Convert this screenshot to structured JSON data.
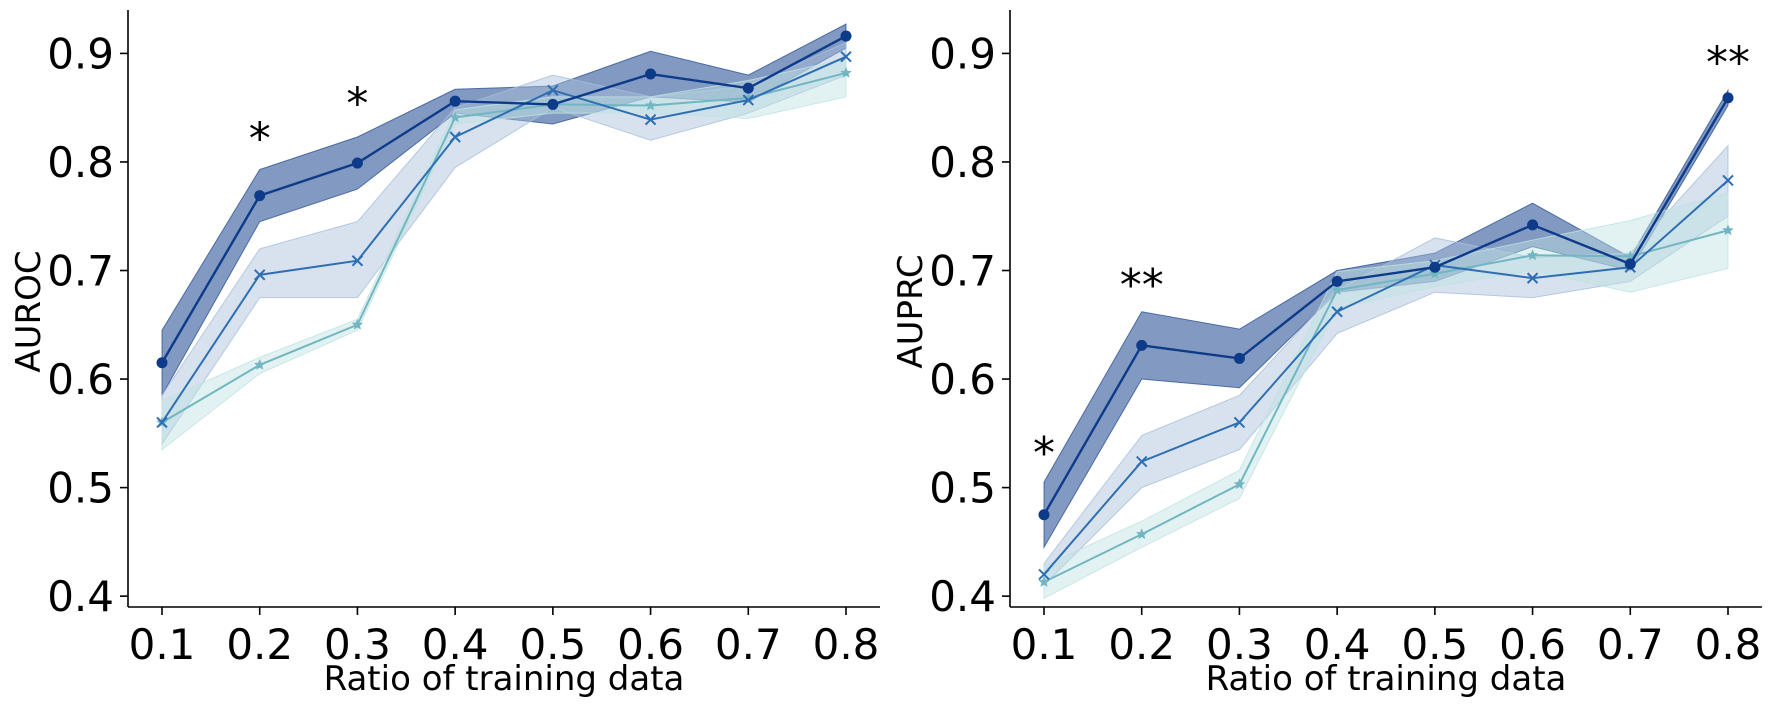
{
  "colors": {
    "series_1": "#0d3b8a",
    "series_2": "#2e6fb3",
    "series_3": "#72b6c2",
    "band_1": "#2f5597",
    "band_2": "#a8bfdc",
    "band_3": "#bfe2e3"
  },
  "chart_data": [
    {
      "type": "line",
      "title": "",
      "xlabel": "Ratio of training data",
      "ylabel": "AUROC",
      "x": [
        0.1,
        0.2,
        0.3,
        0.4,
        0.5,
        0.6,
        0.7,
        0.8
      ],
      "x_tick_labels": [
        "0.1",
        "0.2",
        "0.3",
        "0.4",
        "0.5",
        "0.6",
        "0.7",
        "0.8"
      ],
      "ylim": [
        0.39,
        0.94
      ],
      "y_ticks": [
        0.4,
        0.5,
        0.6,
        0.7,
        0.8,
        0.9
      ],
      "y_tick_labels": [
        "0.4",
        "0.5",
        "0.6",
        "0.7",
        "0.8",
        "0.9"
      ],
      "grid": false,
      "series": [
        {
          "marker": "circle",
          "values": [
            0.615,
            0.769,
            0.799,
            0.856,
            0.853,
            0.881,
            0.868,
            0.916
          ],
          "lower": [
            0.585,
            0.745,
            0.775,
            0.845,
            0.835,
            0.86,
            0.855,
            0.905
          ],
          "upper": [
            0.645,
            0.793,
            0.823,
            0.867,
            0.87,
            0.902,
            0.88,
            0.927
          ]
        },
        {
          "marker": "x",
          "values": [
            0.56,
            0.696,
            0.709,
            0.823,
            0.866,
            0.839,
            0.857,
            0.897
          ],
          "lower": [
            0.54,
            0.675,
            0.675,
            0.795,
            0.85,
            0.82,
            0.845,
            0.88
          ],
          "upper": [
            0.585,
            0.72,
            0.745,
            0.85,
            0.88,
            0.86,
            0.87,
            0.91
          ]
        },
        {
          "marker": "star",
          "values": [
            0.56,
            0.613,
            0.65,
            0.841,
            0.853,
            0.852,
            0.859,
            0.882
          ],
          "lower": [
            0.535,
            0.605,
            0.645,
            0.835,
            0.845,
            0.845,
            0.84,
            0.86
          ],
          "upper": [
            0.58,
            0.62,
            0.655,
            0.848,
            0.86,
            0.86,
            0.875,
            0.895
          ]
        }
      ],
      "annotations": [
        {
          "text": "*",
          "x": 0.2,
          "y": 0.83
        },
        {
          "text": "*",
          "x": 0.3,
          "y": 0.862
        }
      ]
    },
    {
      "type": "line",
      "title": "",
      "xlabel": "Ratio of training data",
      "ylabel": "AUPRC",
      "x": [
        0.1,
        0.2,
        0.3,
        0.4,
        0.5,
        0.6,
        0.7,
        0.8
      ],
      "x_tick_labels": [
        "0.1",
        "0.2",
        "0.3",
        "0.4",
        "0.5",
        "0.6",
        "0.7",
        "0.8"
      ],
      "ylim": [
        0.39,
        0.94
      ],
      "y_ticks": [
        0.4,
        0.5,
        0.6,
        0.7,
        0.8,
        0.9
      ],
      "y_tick_labels": [
        "0.4",
        "0.5",
        "0.6",
        "0.7",
        "0.8",
        "0.9"
      ],
      "grid": false,
      "series": [
        {
          "marker": "circle",
          "values": [
            0.475,
            0.631,
            0.619,
            0.69,
            0.703,
            0.742,
            0.706,
            0.859
          ],
          "lower": [
            0.445,
            0.6,
            0.592,
            0.68,
            0.69,
            0.722,
            0.7,
            0.852
          ],
          "upper": [
            0.505,
            0.662,
            0.646,
            0.7,
            0.716,
            0.762,
            0.712,
            0.866
          ]
        },
        {
          "marker": "x",
          "values": [
            0.42,
            0.524,
            0.56,
            0.662,
            0.705,
            0.693,
            0.703,
            0.783
          ],
          "lower": [
            0.41,
            0.5,
            0.535,
            0.642,
            0.68,
            0.675,
            0.69,
            0.75
          ],
          "upper": [
            0.43,
            0.548,
            0.585,
            0.682,
            0.73,
            0.712,
            0.716,
            0.815
          ]
        },
        {
          "marker": "star",
          "values": [
            0.413,
            0.457,
            0.503,
            0.682,
            0.697,
            0.714,
            0.713,
            0.737
          ],
          "lower": [
            0.398,
            0.445,
            0.49,
            0.665,
            0.685,
            0.7,
            0.68,
            0.702
          ],
          "upper": [
            0.428,
            0.469,
            0.516,
            0.699,
            0.709,
            0.728,
            0.746,
            0.772
          ]
        }
      ],
      "annotations": [
        {
          "text": "*",
          "x": 0.1,
          "y": 0.54
        },
        {
          "text": "**",
          "x": 0.2,
          "y": 0.695
        },
        {
          "text": "**",
          "x": 0.8,
          "y": 0.9
        }
      ]
    }
  ]
}
